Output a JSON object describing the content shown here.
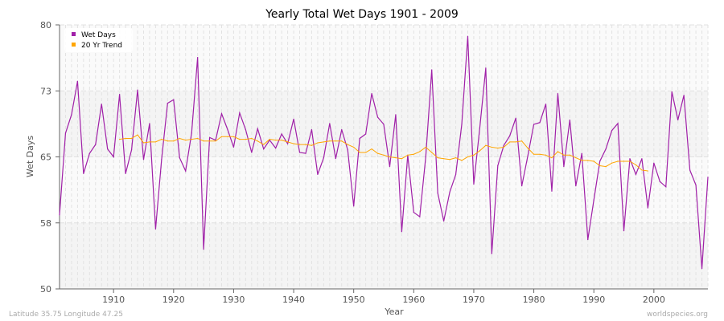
{
  "chart_data": {
    "type": "line",
    "title": "Yearly Total Wet Days 1901 - 2009",
    "xlabel": "Year",
    "ylabel": "Wet Days",
    "xlim": [
      1901,
      2009
    ],
    "ylim": [
      50,
      80
    ],
    "x_ticks": [
      1910,
      1920,
      1930,
      1940,
      1950,
      1960,
      1970,
      1980,
      1990,
      2000
    ],
    "y_ticks": [
      {
        "value": 80,
        "label": "80"
      },
      {
        "value": 72.5,
        "label": "73"
      },
      {
        "value": 65,
        "label": "65"
      },
      {
        "value": 57.5,
        "label": "58"
      },
      {
        "value": 50,
        "label": "50"
      }
    ],
    "grid": true,
    "legend_position": "top-left",
    "series": [
      {
        "name": "Wet Days",
        "color": "#a020a8",
        "start_year": 1901,
        "values": [
          58.4,
          67.7,
          69.8,
          73.6,
          63.1,
          65.4,
          66.4,
          71.0,
          65.9,
          65.0,
          72.1,
          63.1,
          65.8,
          72.6,
          64.7,
          68.8,
          56.8,
          64.7,
          71.1,
          71.5,
          64.9,
          63.4,
          67.7,
          76.3,
          54.5,
          67.2,
          66.9,
          69.9,
          68.1,
          66.1,
          70.0,
          68.1,
          65.5,
          68.2,
          65.9,
          66.9,
          66.0,
          67.6,
          66.5,
          69.3,
          65.5,
          65.4,
          68.1,
          63.0,
          64.9,
          68.8,
          64.8,
          68.1,
          65.8,
          59.4,
          67.1,
          67.6,
          72.2,
          69.5,
          68.7,
          63.9,
          69.8,
          56.5,
          65.2,
          58.7,
          58.2,
          65.0,
          74.9,
          60.9,
          57.7,
          61.0,
          63.0,
          68.7,
          78.7,
          61.9,
          68.3,
          75.1,
          54.0,
          64.0,
          66.3,
          67.4,
          69.4,
          61.7,
          65.1,
          68.7,
          68.9,
          71.0,
          61.1,
          72.2,
          63.9,
          69.2,
          61.7,
          65.4,
          55.6,
          60.1,
          64.5,
          65.9,
          68.0,
          68.8,
          56.6,
          64.8,
          63.0,
          64.8,
          59.2,
          64.3,
          62.2,
          61.6,
          72.4,
          69.2,
          72.0,
          63.5,
          61.8,
          52.3,
          62.7
        ]
      },
      {
        "name": "20 Yr Trend",
        "color": "#ffa500",
        "start_year": 1911,
        "values": [
          67.0,
          67.1,
          67.1,
          67.5,
          66.6,
          66.7,
          66.7,
          67.0,
          66.8,
          66.8,
          67.1,
          66.9,
          67.0,
          67.1,
          66.8,
          66.8,
          66.8,
          67.3,
          67.3,
          67.3,
          67.0,
          67.0,
          67.1,
          66.8,
          66.4,
          67.0,
          66.9,
          66.9,
          66.7,
          66.5,
          66.4,
          66.4,
          66.3,
          66.6,
          66.7,
          66.8,
          66.8,
          66.8,
          66.4,
          66.1,
          65.5,
          65.5,
          65.9,
          65.4,
          65.2,
          65.0,
          64.9,
          64.8,
          65.2,
          65.3,
          65.6,
          66.1,
          65.5,
          64.9,
          64.8,
          64.7,
          64.9,
          64.6,
          65.0,
          65.2,
          65.7,
          66.3,
          66.1,
          66.0,
          66.1,
          66.7,
          66.7,
          66.8,
          66.0,
          65.3,
          65.3,
          65.2,
          64.9,
          65.6,
          65.2,
          65.2,
          64.9,
          64.6,
          64.6,
          64.5,
          64.0,
          63.9,
          64.3,
          64.5,
          64.5,
          64.5,
          64.1,
          63.5,
          63.4
        ]
      }
    ]
  },
  "footer": {
    "location": "Latitude 35.75 Longitude 47.25",
    "source": "worldspecies.org"
  }
}
